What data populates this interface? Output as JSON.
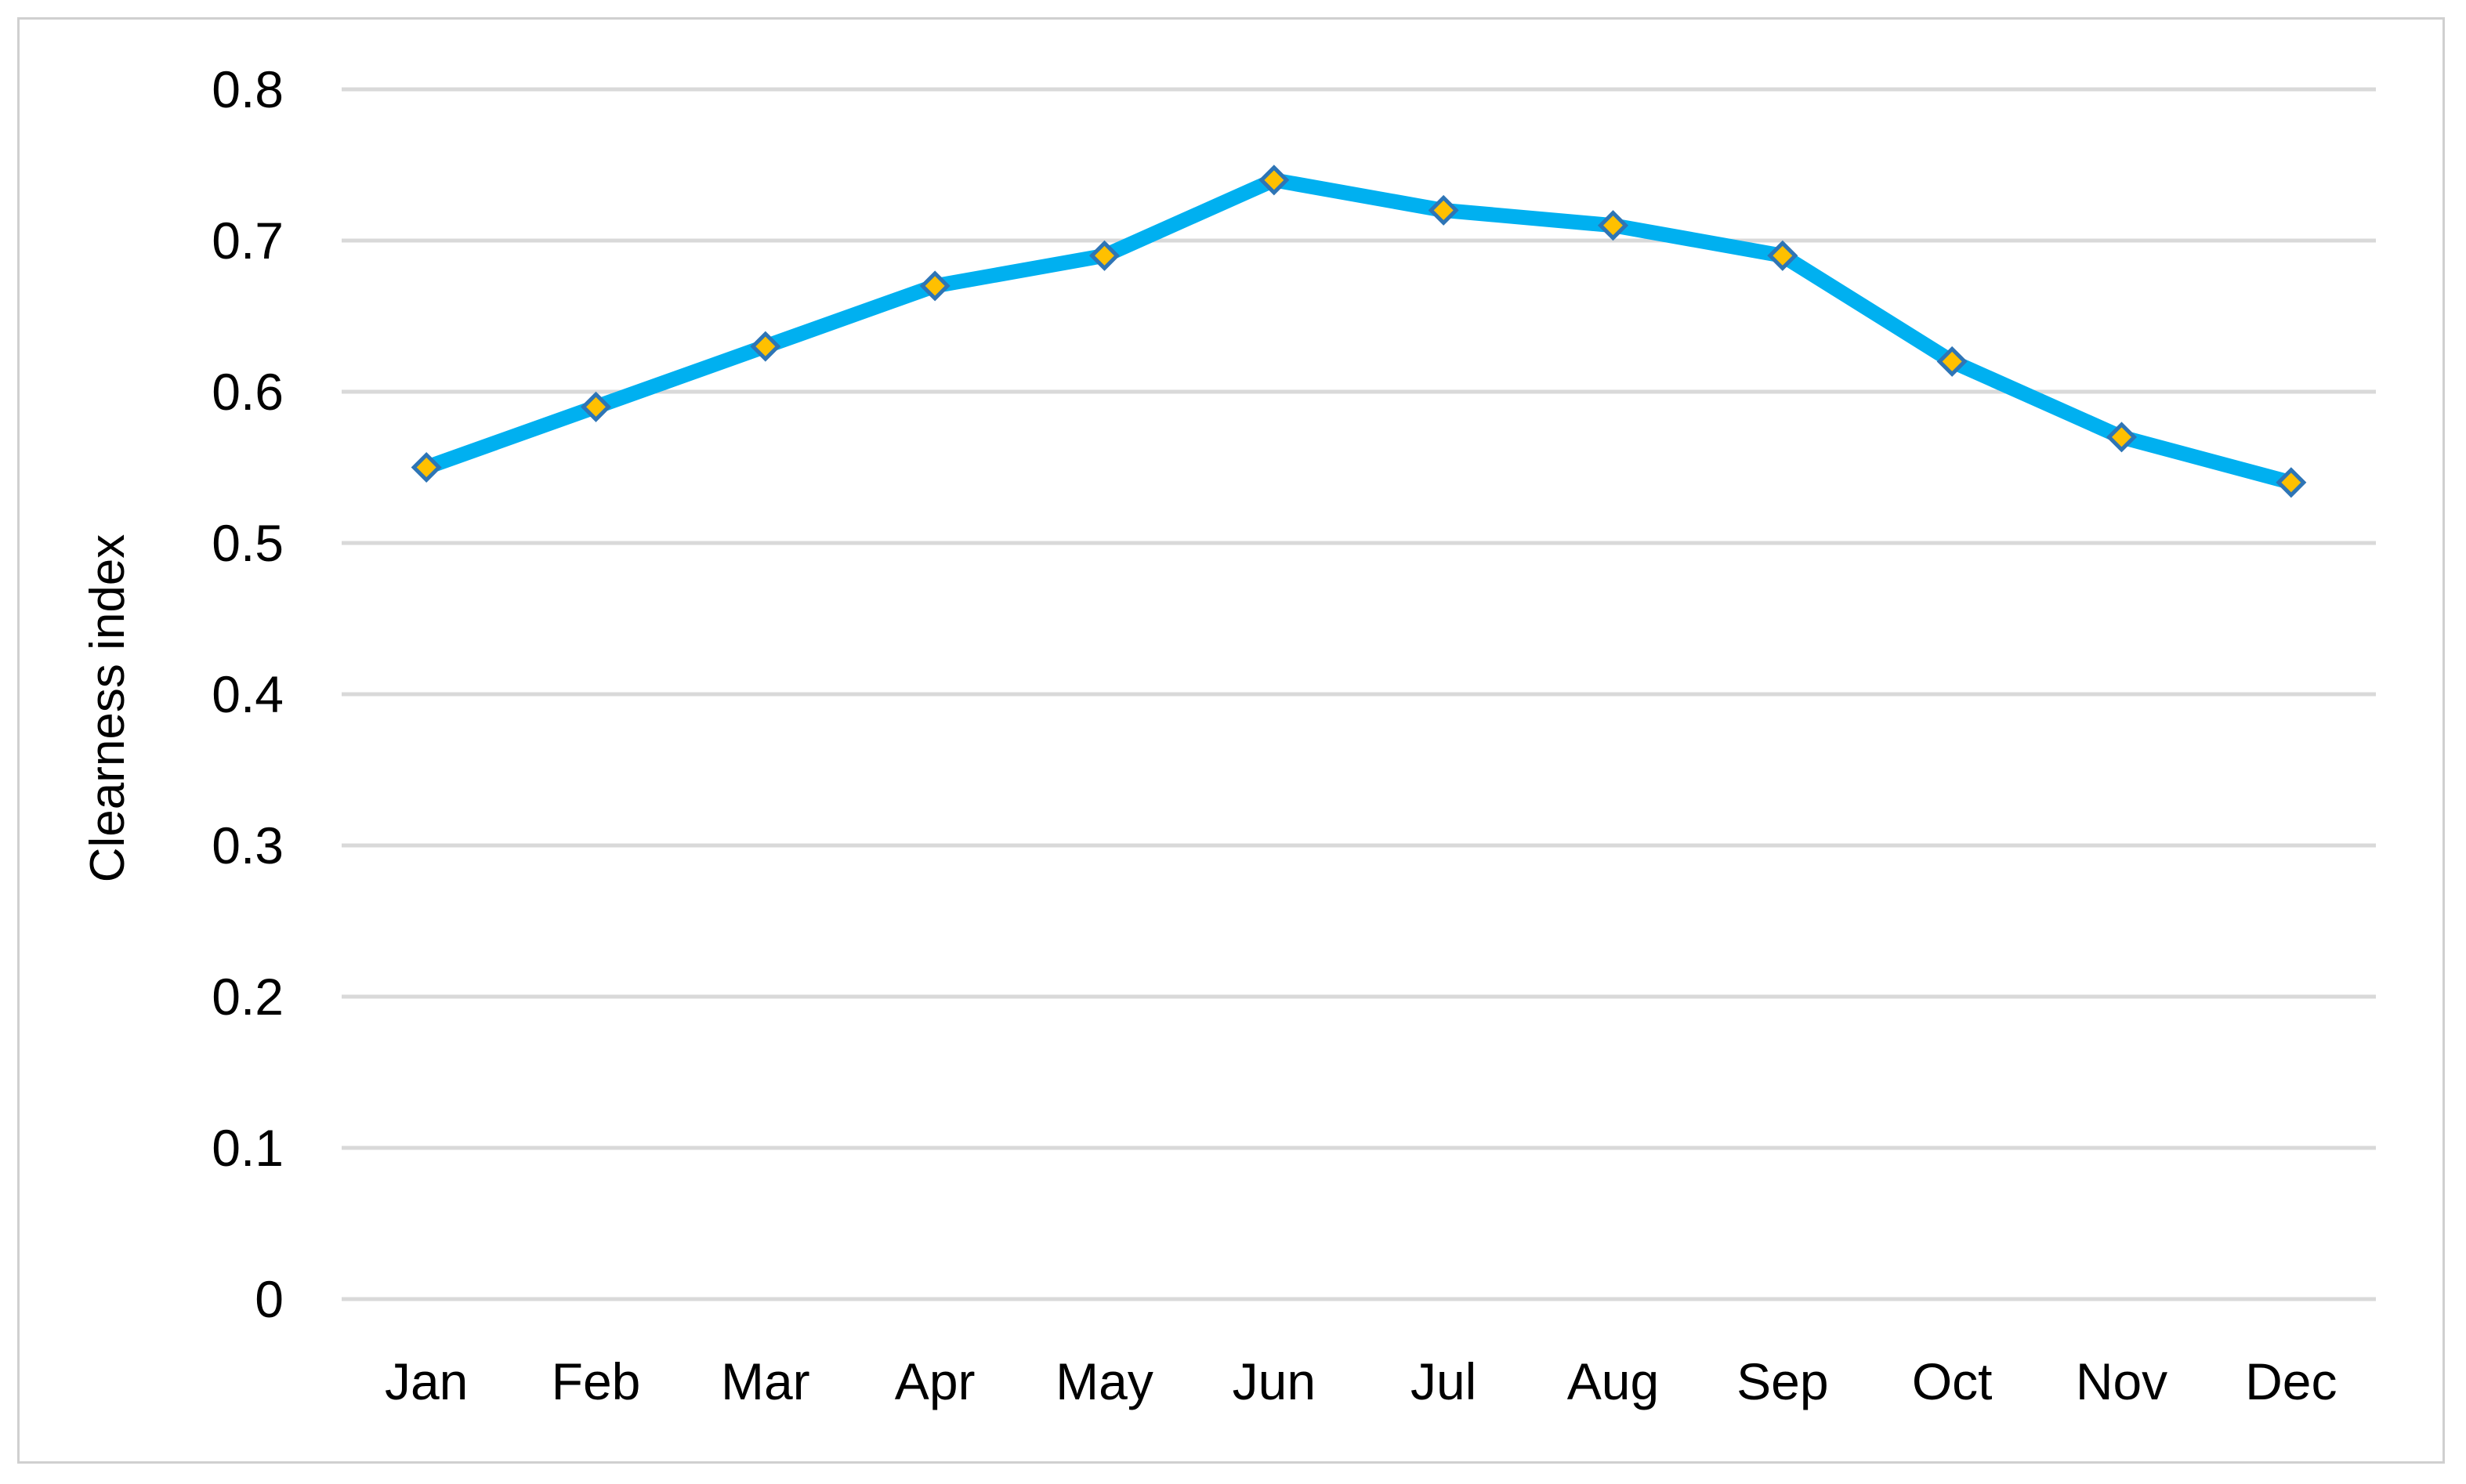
{
  "chart_data": {
    "type": "line",
    "title": "",
    "xlabel": "",
    "ylabel": "Clearness index",
    "categories": [
      "Jan",
      "Feb",
      "Mar",
      "Apr",
      "May",
      "Jun",
      "Jul",
      "Aug",
      "Sep",
      "Oct",
      "Nov",
      "Dec"
    ],
    "series": [
      {
        "values": [
          0.55,
          0.59,
          0.63,
          0.67,
          0.69,
          0.74,
          0.72,
          0.71,
          0.69,
          0.62,
          0.57,
          0.54
        ],
        "line_color": "#00b0f0",
        "marker": "diamond",
        "marker_fill": "#ffc000",
        "marker_edge": "#2e75b6"
      }
    ],
    "ylim": [
      0,
      0.8
    ],
    "yticks": [
      "0",
      "0.1",
      "0.2",
      "0.3",
      "0.4",
      "0.5",
      "0.6",
      "0.7",
      "0.8"
    ],
    "grid": true,
    "grid_color": "#d9d9d9",
    "legend": "none"
  }
}
